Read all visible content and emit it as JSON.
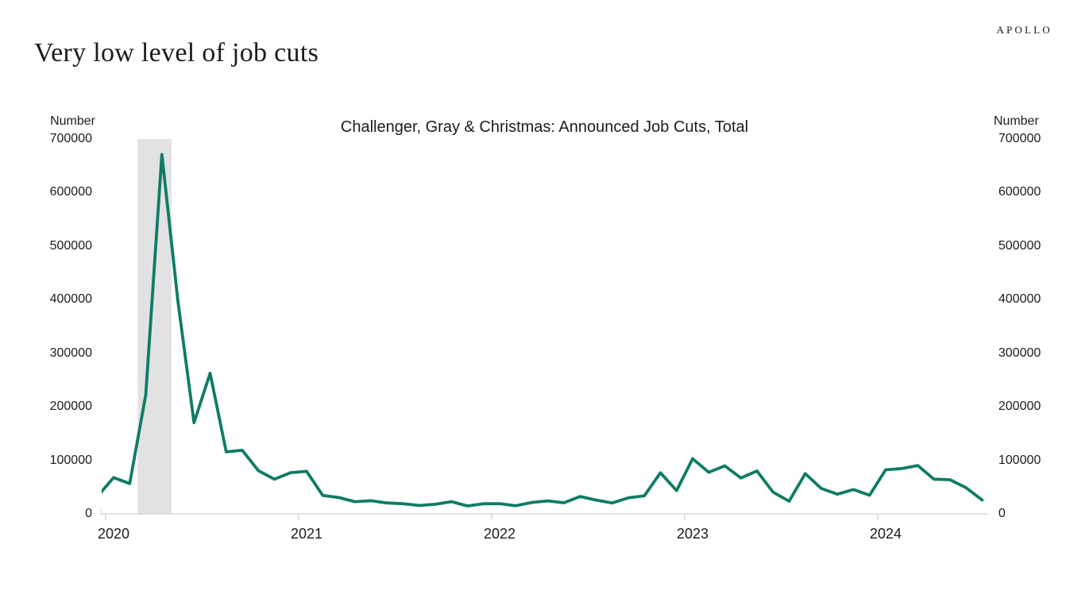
{
  "header": {
    "logo_text": "APOLLO",
    "page_title": "Very low level of job cuts"
  },
  "chart_data": {
    "type": "line",
    "title": "Challenger, Gray & Christmas: Announced Job Cuts, Total",
    "y_axis_label_left": "Number",
    "y_axis_label_right": "Number",
    "ylim": [
      0,
      700000
    ],
    "yticks": [
      0,
      100000,
      200000,
      300000,
      400000,
      500000,
      600000,
      700000
    ],
    "xticks": [
      "2020",
      "2021",
      "2022",
      "2023",
      "2024"
    ],
    "grid": false,
    "legend": "none",
    "text_color": "#1c1c1c",
    "axis_color": "#d8d8d8",
    "tick_color": "#cccccc",
    "months": [
      "2019-12",
      "2020-01",
      "2020-02",
      "2020-03",
      "2020-04",
      "2020-05",
      "2020-06",
      "2020-07",
      "2020-08",
      "2020-09",
      "2020-10",
      "2020-11",
      "2020-12",
      "2021-01",
      "2021-02",
      "2021-03",
      "2021-04",
      "2021-05",
      "2021-06",
      "2021-07",
      "2021-08",
      "2021-09",
      "2021-10",
      "2021-11",
      "2021-12",
      "2022-01",
      "2022-02",
      "2022-03",
      "2022-04",
      "2022-05",
      "2022-06",
      "2022-07",
      "2022-08",
      "2022-09",
      "2022-10",
      "2022-11",
      "2022-12",
      "2023-01",
      "2023-02",
      "2023-03",
      "2023-04",
      "2023-05",
      "2023-06",
      "2023-07",
      "2023-08",
      "2023-09",
      "2023-10",
      "2023-11",
      "2023-12",
      "2024-01",
      "2024-02",
      "2024-03",
      "2024-04",
      "2024-05",
      "2024-06",
      "2024-07"
    ],
    "series": [
      {
        "name": "Announced job cuts, total",
        "color": "#0e7c64",
        "values": [
          32843,
          67735,
          56660,
          222288,
          671129,
          397016,
          170219,
          262649,
          115762,
          118804,
          80666,
          64797,
          77030,
          79552,
          34531,
          30603,
          22913,
          24586,
          20476,
          18942,
          15723,
          17895,
          22822,
          14875,
          19052,
          19064,
          15245,
          21387,
          24286,
          20712,
          32517,
          25810,
          20485,
          29989,
          33843,
          76835,
          43651,
          102943,
          77770,
          89703,
          66995,
          80089,
          40709,
          23697,
          75151,
          47457,
          36836,
          45510,
          34817,
          82307,
          84638,
          90309,
          64789,
          63816,
          48786,
          25885
        ]
      }
    ],
    "recession_band": {
      "from": "2020-03",
      "to": "2020-04",
      "color": "#e2e2e2"
    }
  }
}
